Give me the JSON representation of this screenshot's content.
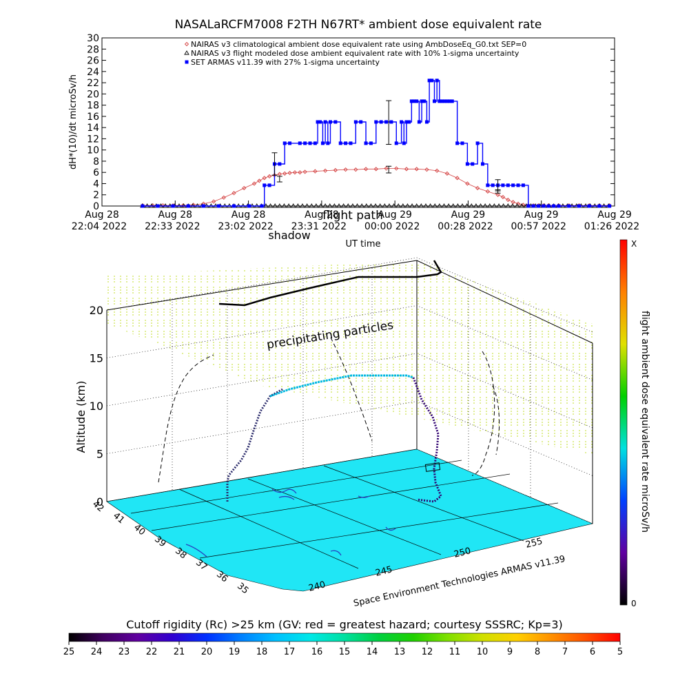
{
  "chart_data": [
    {
      "type": "line",
      "title": "NASALaRCFM7008  F2TH N67RT* ambient dose equivalent rate",
      "ylabel": "dH*(10)/dt microSv/h",
      "xlabel": "UT time",
      "ylim": [
        0,
        30
      ],
      "yticks": [
        "0",
        "2",
        "4",
        "6",
        "8",
        "10",
        "12",
        "14",
        "16",
        "18",
        "20",
        "22",
        "24",
        "26",
        "28",
        "30"
      ],
      "xlim_minutes": [
        0,
        202
      ],
      "xticks": [
        {
          "line1": "Aug 28",
          "line2": "22:04 2022"
        },
        {
          "line1": "Aug 28",
          "line2": "22:33 2022"
        },
        {
          "line1": "Aug 28",
          "line2": "23:02 2022"
        },
        {
          "line1": "Aug 28",
          "line2": "23:31 2022"
        },
        {
          "line1": "Aug 29",
          "line2": "00:00 2022"
        },
        {
          "line1": "Aug 29",
          "line2": "00:28 2022"
        },
        {
          "line1": "Aug 29",
          "line2": "00:57 2022"
        },
        {
          "line1": "Aug 29",
          "line2": "01:26 2022"
        }
      ],
      "overlay_labels": [
        "shadow",
        "flight path"
      ],
      "legend_position": "top",
      "series": [
        {
          "name": "NAIRAS v3 climatological ambient dose equivalent rate using AmbDoseEq_G0.txt SEP=0",
          "color": "#d44040",
          "marker": "diamond",
          "x_minutes": [
            16,
            20,
            24,
            28,
            32,
            36,
            40,
            44,
            48,
            52,
            56,
            60,
            62,
            64,
            66,
            68,
            70,
            72,
            74,
            76,
            78,
            80,
            84,
            88,
            92,
            96,
            100,
            104,
            108,
            112,
            116,
            120,
            124,
            128,
            132,
            136,
            140,
            144,
            148,
            152,
            156,
            158,
            160,
            162,
            164,
            166,
            168,
            170,
            172,
            174,
            176,
            180,
            184,
            188,
            192,
            196,
            200
          ],
          "values": [
            0.1,
            0.1,
            0.1,
            0.1,
            0.1,
            0.2,
            0.4,
            0.8,
            1.5,
            2.3,
            3.2,
            4.0,
            4.5,
            5.0,
            5.3,
            5.5,
            5.7,
            5.8,
            5.9,
            6.0,
            6.0,
            6.1,
            6.2,
            6.3,
            6.4,
            6.5,
            6.5,
            6.6,
            6.6,
            6.7,
            6.7,
            6.6,
            6.6,
            6.5,
            6.3,
            5.8,
            5.0,
            4.0,
            3.2,
            2.6,
            2.0,
            1.6,
            1.1,
            0.7,
            0.4,
            0.2,
            0.1,
            0.1,
            0.1,
            0.1,
            0.1,
            0.1,
            0.1,
            0.1,
            0.1,
            0.1,
            0.1
          ]
        },
        {
          "name": "NAIRAS v3 flight modeled dose ambient equivalent rate with 10% 1-sigma uncertainty",
          "color": "#000000",
          "marker": "triangle",
          "x_minutes": [
            16,
            24,
            32,
            40,
            48,
            56,
            64,
            72,
            80,
            88,
            96,
            104,
            112,
            120,
            128,
            136,
            144,
            152,
            160,
            168,
            176,
            184,
            192,
            200
          ],
          "values": [
            0,
            0,
            0,
            0,
            0,
            0,
            0,
            0,
            0,
            0,
            0,
            0,
            0,
            0,
            0,
            0,
            0,
            0,
            0,
            0,
            0,
            0,
            0,
            0
          ]
        },
        {
          "name": "SET ARMAS v11.39 with 27% 1-sigma uncertainty",
          "color": "#0000ff",
          "marker": "square",
          "x_minutes": [
            16,
            22,
            28,
            34,
            40,
            46,
            52,
            58,
            63,
            64,
            66,
            68,
            70,
            72,
            74,
            78,
            80,
            82,
            84,
            85,
            86,
            87,
            88,
            89,
            90,
            92,
            94,
            96,
            98,
            100,
            102,
            104,
            106,
            108,
            110,
            112,
            114,
            116,
            118,
            119,
            120,
            121,
            122,
            123,
            124,
            125,
            126,
            127,
            128,
            129,
            130,
            131,
            132,
            133,
            134,
            135,
            136,
            137,
            138,
            140,
            142,
            144,
            146,
            148,
            150,
            152,
            154,
            156,
            158,
            160,
            162,
            164,
            166,
            168,
            170,
            172,
            174,
            176,
            178,
            180,
            184,
            188,
            192,
            196,
            200
          ],
          "values": [
            0,
            0,
            0,
            0,
            0,
            0,
            0,
            0,
            0,
            3.7,
            3.7,
            7.5,
            7.5,
            11.2,
            11.2,
            11.2,
            11.2,
            11.2,
            11.2,
            15,
            15,
            11.2,
            15,
            11.2,
            15,
            15,
            11.2,
            11.2,
            11.2,
            15,
            15,
            11.2,
            11.2,
            15,
            15,
            15,
            15,
            11.2,
            15,
            11.2,
            15,
            15,
            18.7,
            18.7,
            18.7,
            15,
            18.7,
            18.7,
            15,
            22.4,
            22.4,
            18.7,
            22.4,
            18.7,
            18.7,
            18.7,
            18.7,
            18.7,
            18.7,
            11.2,
            11.2,
            7.5,
            7.5,
            11.2,
            7.5,
            3.7,
            3.7,
            3.7,
            3.7,
            3.7,
            3.7,
            3.7,
            3.7,
            0,
            0,
            0,
            0,
            0,
            0,
            0,
            0,
            0,
            0,
            0,
            0
          ]
        }
      ],
      "error_bars": [
        {
          "x_minutes": 68,
          "value": 7.5,
          "low": 5.5,
          "high": 9.5
        },
        {
          "x_minutes": 70,
          "value": 4.8,
          "low": 4.3,
          "high": 5.3
        },
        {
          "x_minutes": 113,
          "value": 14.9,
          "low": 11.0,
          "high": 18.8
        },
        {
          "x_minutes": 113,
          "value": 6.5,
          "low": 5.9,
          "high": 7.1
        },
        {
          "x_minutes": 156,
          "value": 3.7,
          "low": 2.7,
          "high": 4.7
        },
        {
          "x_minutes": 156,
          "value": 2.6,
          "low": 2.3,
          "high": 2.9
        }
      ]
    },
    {
      "type": "scatter",
      "subtype": "3d-flight-path",
      "zlabel": "Altitude (km)",
      "zticks": [
        "0",
        "5",
        "10",
        "15",
        "20"
      ],
      "latitude_ticks": [
        "42",
        "41",
        "40",
        "39",
        "38",
        "37",
        "36",
        "35"
      ],
      "longitude_ticks": [
        "240",
        "245",
        "250",
        "255"
      ],
      "annotations": [
        "precipitating particles"
      ],
      "credit": "Space Environment Technologies ARMAS v11.39",
      "surface_color": "#20e6f5",
      "colorbar": {
        "label": "flight ambient dose equivalent rate microSv/h",
        "top_label": "X",
        "bottom_label": "0",
        "colors": [
          "#000000",
          "#6000a0",
          "#0040ff",
          "#00e0e0",
          "#00d000",
          "#e0e000",
          "#ff8000",
          "#ff0000"
        ]
      }
    },
    {
      "type": "colorbar",
      "title": "Cutoff rigidity (Rc) >25 km (GV: red = greatest hazard; courtesy SSSRC; Kp=3)",
      "ticks": [
        "25",
        "24",
        "23",
        "22",
        "21",
        "20",
        "19",
        "18",
        "17",
        "16",
        "15",
        "14",
        "13",
        "12",
        "11",
        "10",
        "9",
        "8",
        "7",
        "6",
        "5"
      ],
      "colors": [
        "#000000",
        "#400060",
        "#6000a0",
        "#3000d0",
        "#0030ff",
        "#0080ff",
        "#00c0ff",
        "#00e8e8",
        "#00e0a0",
        "#00d040",
        "#20d000",
        "#80e000",
        "#d0e000",
        "#ffd000",
        "#ff9000",
        "#ff5000",
        "#ff0000"
      ]
    }
  ]
}
